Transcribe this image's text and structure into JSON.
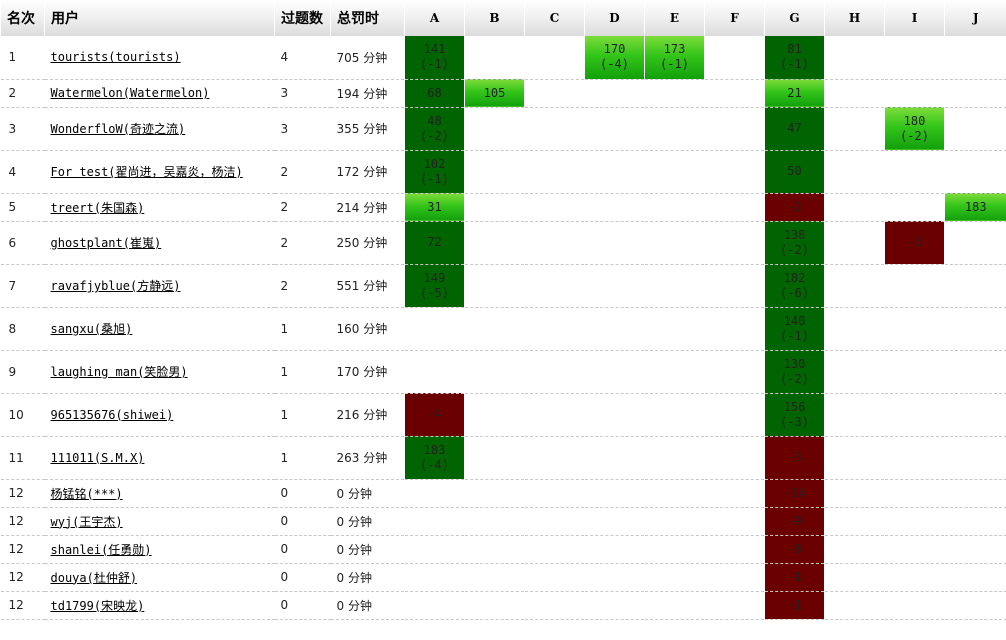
{
  "header": {
    "rank": "名次",
    "user": "用户",
    "solved": "过题数",
    "penalty": "总罚时",
    "problems": [
      "A",
      "B",
      "C",
      "D",
      "E",
      "F",
      "G",
      "H",
      "I",
      "J"
    ]
  },
  "penalty_unit": "分钟",
  "colors": {
    "accepted": "#006400",
    "first_blood": "#2fbf1a",
    "wrong": "#6a0000",
    "header_bg": "#e6e6e6"
  },
  "rows": [
    {
      "rank": "1",
      "user": "tourists(tourists)",
      "solved": "4",
      "penalty": "705",
      "cells": [
        {
          "s": "ac",
          "t": "141",
          "a": "(-1)"
        },
        {},
        {},
        {
          "s": "fb",
          "t": "170",
          "a": "(-4)"
        },
        {
          "s": "fb",
          "t": "173",
          "a": "(-1)"
        },
        {},
        {
          "s": "ac",
          "t": "81",
          "a": "(-1)"
        },
        {},
        {},
        {}
      ]
    },
    {
      "rank": "2",
      "user": "Watermelon(Watermelon)",
      "solved": "3",
      "penalty": "194",
      "cells": [
        {
          "s": "ac",
          "t": "68"
        },
        {
          "s": "fb",
          "t": "105"
        },
        {},
        {},
        {},
        {},
        {
          "s": "fb",
          "t": "21"
        },
        {},
        {},
        {}
      ]
    },
    {
      "rank": "3",
      "user": "WonderfloW(奇迹之流)",
      "solved": "3",
      "penalty": "355",
      "cells": [
        {
          "s": "ac",
          "t": "48",
          "a": "(-2)"
        },
        {},
        {},
        {},
        {},
        {},
        {
          "s": "ac",
          "t": "47"
        },
        {},
        {
          "s": "fb",
          "t": "180",
          "a": "(-2)"
        },
        {}
      ]
    },
    {
      "rank": "4",
      "user": "For test(翟尚进，吴嘉炎，杨洁)",
      "solved": "2",
      "penalty": "172",
      "cells": [
        {
          "s": "ac",
          "t": "102",
          "a": "(-1)"
        },
        {},
        {},
        {},
        {},
        {},
        {
          "s": "ac",
          "t": "50"
        },
        {},
        {},
        {}
      ]
    },
    {
      "rank": "5",
      "user": "treert(朱国森)",
      "solved": "2",
      "penalty": "214",
      "cells": [
        {
          "s": "fb",
          "t": "31"
        },
        {},
        {},
        {},
        {},
        {},
        {
          "s": "wa",
          "t": "-2"
        },
        {},
        {},
        {
          "s": "fb",
          "t": "183"
        }
      ]
    },
    {
      "rank": "6",
      "user": "ghostplant(崔嵬)",
      "solved": "2",
      "penalty": "250",
      "cells": [
        {
          "s": "ac",
          "t": "72"
        },
        {},
        {},
        {},
        {},
        {},
        {
          "s": "ac",
          "t": "138",
          "a": "(-2)"
        },
        {},
        {
          "s": "wa",
          "t": "-3"
        },
        {}
      ]
    },
    {
      "rank": "7",
      "user": "ravafjyblue(方静远)",
      "solved": "2",
      "penalty": "551",
      "cells": [
        {
          "s": "ac",
          "t": "149",
          "a": "(-5)"
        },
        {},
        {},
        {},
        {},
        {},
        {
          "s": "ac",
          "t": "182",
          "a": "(-6)"
        },
        {},
        {},
        {}
      ]
    },
    {
      "rank": "8",
      "user": "sangxu(桑旭)",
      "solved": "1",
      "penalty": "160",
      "cells": [
        {},
        {},
        {},
        {},
        {},
        {},
        {
          "s": "ac",
          "t": "140",
          "a": "(-1)"
        },
        {},
        {},
        {}
      ]
    },
    {
      "rank": "9",
      "user": "laughing man(笑脸男)",
      "solved": "1",
      "penalty": "170",
      "cells": [
        {},
        {},
        {},
        {},
        {},
        {},
        {
          "s": "ac",
          "t": "130",
          "a": "(-2)"
        },
        {},
        {},
        {}
      ]
    },
    {
      "rank": "10",
      "user": "965135676(shiwei)",
      "solved": "1",
      "penalty": "216",
      "cells": [
        {
          "s": "wa",
          "t": "-4"
        },
        {},
        {},
        {},
        {},
        {},
        {
          "s": "ac",
          "t": "156",
          "a": "(-3)"
        },
        {},
        {},
        {}
      ]
    },
    {
      "rank": "11",
      "user": "111011(S.M.X)",
      "solved": "1",
      "penalty": "263",
      "cells": [
        {
          "s": "ac",
          "t": "183",
          "a": "(-4)"
        },
        {},
        {},
        {},
        {},
        {},
        {
          "s": "wa",
          "t": "-3"
        },
        {},
        {},
        {}
      ]
    },
    {
      "rank": "12",
      "user": "杨锰铭(***)",
      "solved": "0",
      "penalty": "0",
      "cells": [
        {},
        {},
        {},
        {},
        {},
        {},
        {
          "s": "wa",
          "t": "-14"
        },
        {},
        {},
        {}
      ]
    },
    {
      "rank": "12",
      "user": "wyj(王宇杰)",
      "solved": "0",
      "penalty": "0",
      "cells": [
        {},
        {},
        {},
        {},
        {},
        {},
        {
          "s": "wa",
          "t": "-9"
        },
        {},
        {},
        {}
      ]
    },
    {
      "rank": "12",
      "user": "shanlei(任勇勋)",
      "solved": "0",
      "penalty": "0",
      "cells": [
        {},
        {},
        {},
        {},
        {},
        {},
        {
          "s": "wa",
          "t": "-8"
        },
        {},
        {},
        {}
      ]
    },
    {
      "rank": "12",
      "user": "douya(杜仲舒)",
      "solved": "0",
      "penalty": "0",
      "cells": [
        {},
        {},
        {},
        {},
        {},
        {},
        {
          "s": "wa",
          "t": "-1"
        },
        {},
        {},
        {}
      ]
    },
    {
      "rank": "12",
      "user": "td1799(宋映龙)",
      "solved": "0",
      "penalty": "0",
      "cells": [
        {},
        {},
        {},
        {},
        {},
        {},
        {
          "s": "wa",
          "t": "-1"
        },
        {},
        {},
        {}
      ]
    }
  ]
}
